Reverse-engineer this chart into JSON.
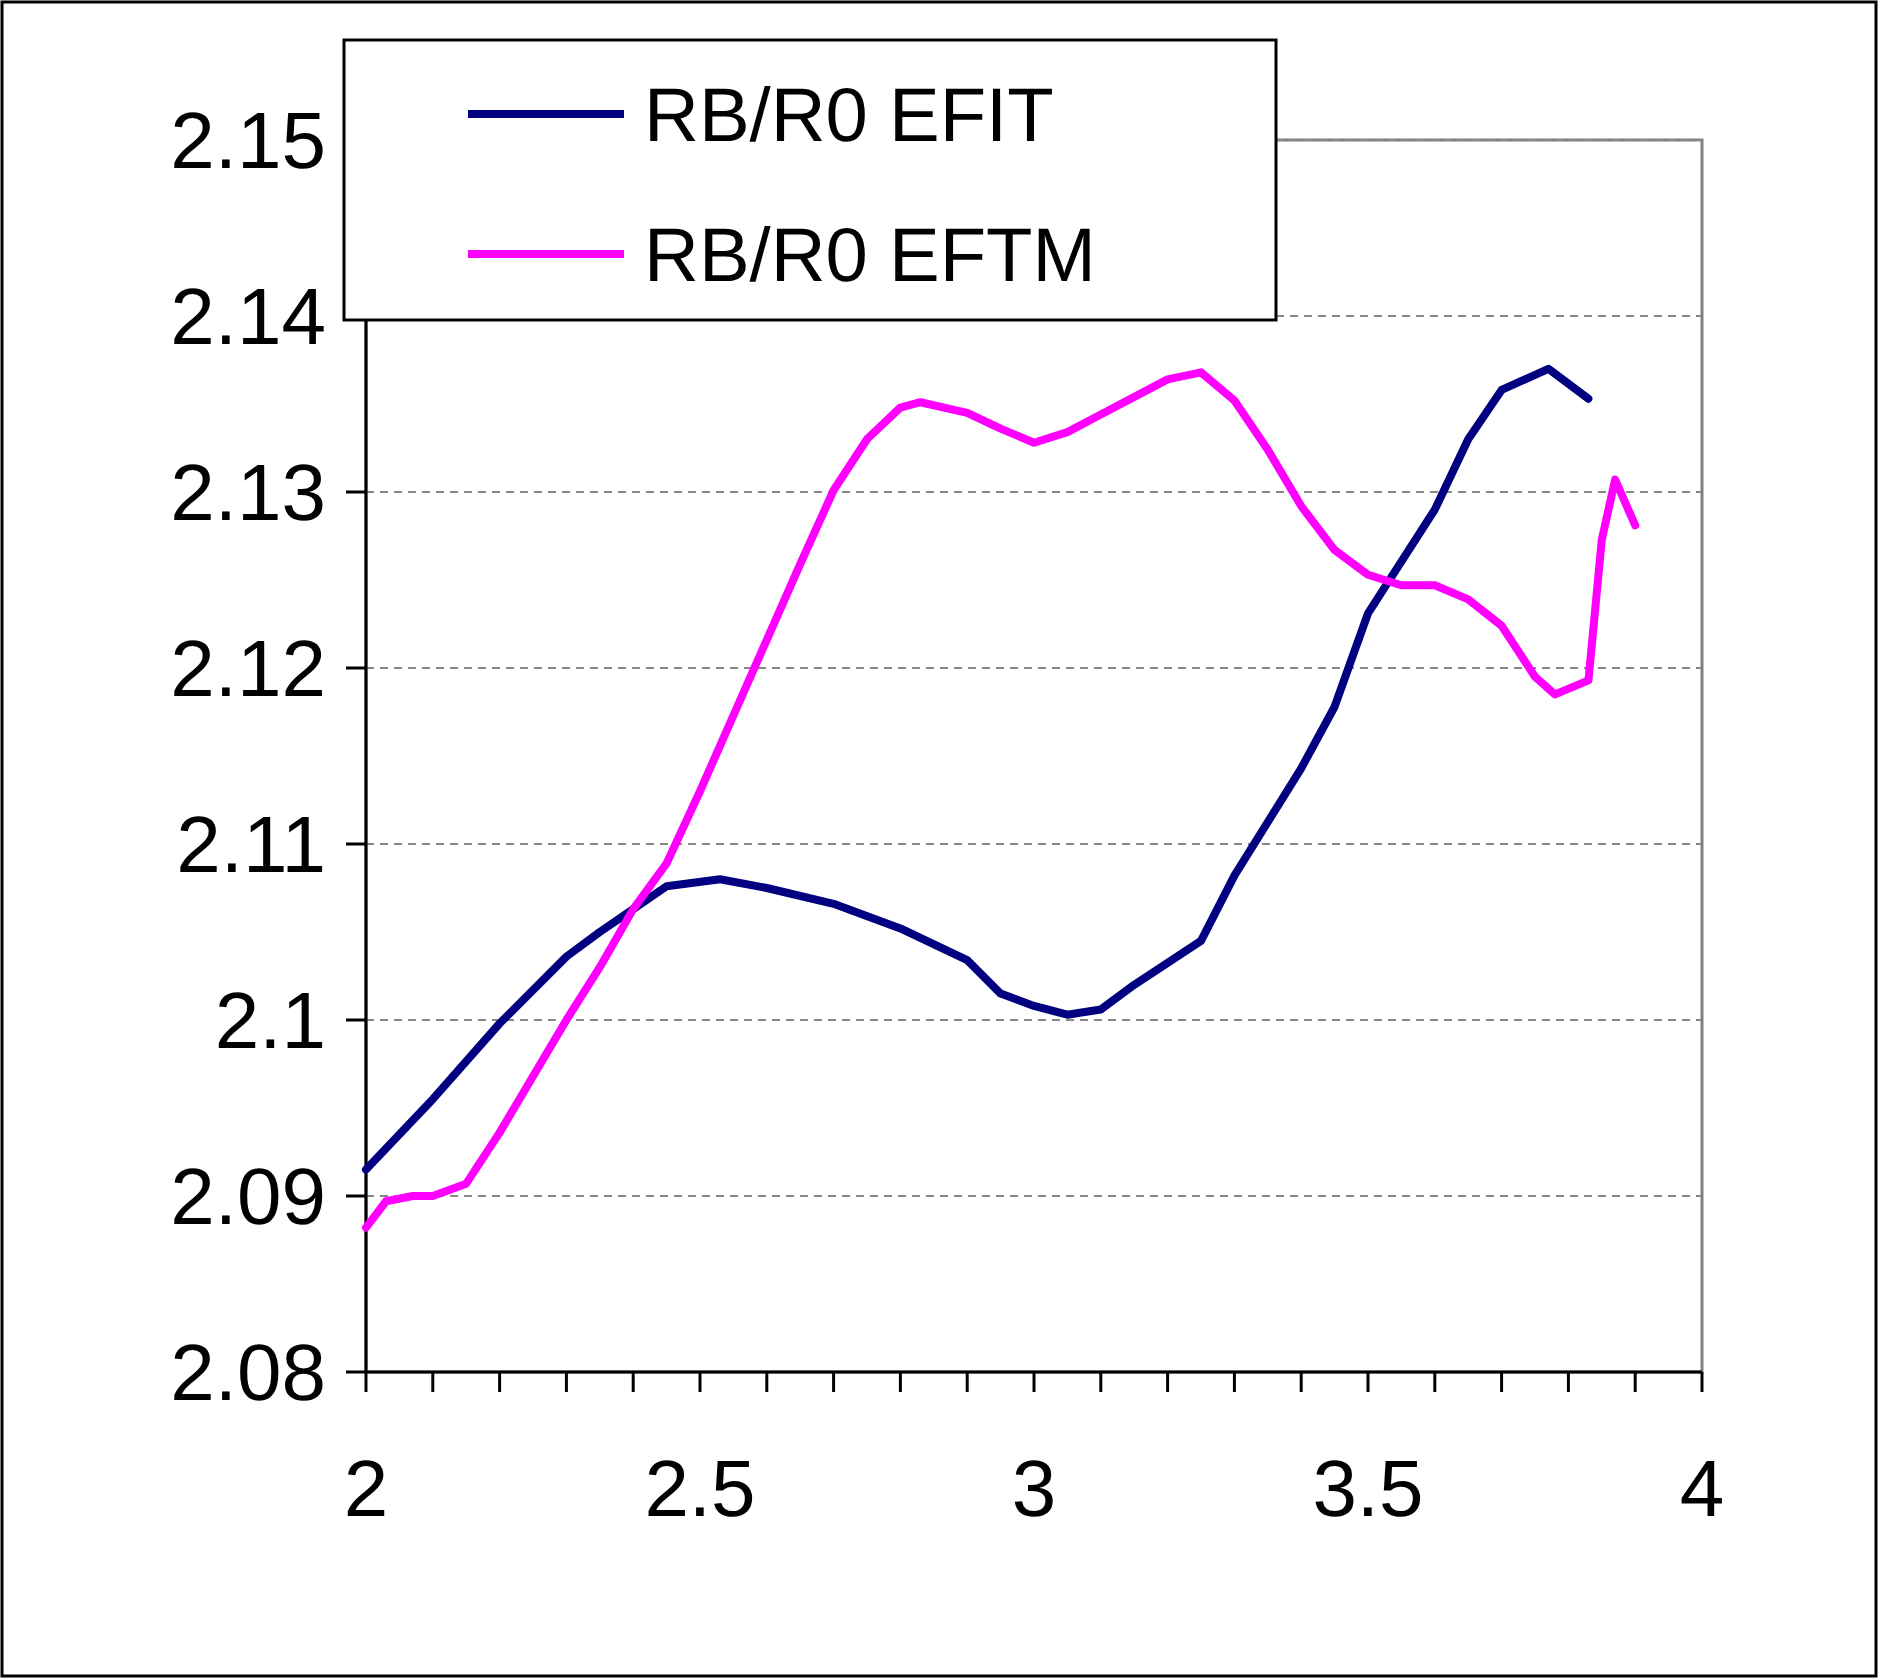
{
  "chart_data": {
    "type": "line",
    "xlim": [
      2,
      4
    ],
    "ylim": [
      2.08,
      2.15
    ],
    "xticks": [
      2,
      {
        "value": 2.1,
        "label": null
      },
      {
        "value": 2.2,
        "label": null
      },
      {
        "value": 2.3,
        "label": null
      },
      {
        "value": 2.4,
        "label": null
      },
      2.5,
      {
        "value": 2.6,
        "label": null
      },
      {
        "value": 2.7,
        "label": null
      },
      {
        "value": 2.8,
        "label": null
      },
      {
        "value": 2.9,
        "label": null
      },
      3,
      {
        "value": 3.1,
        "label": null
      },
      {
        "value": 3.2,
        "label": null
      },
      {
        "value": 3.3,
        "label": null
      },
      {
        "value": 3.4,
        "label": null
      },
      3.5,
      {
        "value": 3.6,
        "label": null
      },
      {
        "value": 3.7,
        "label": null
      },
      {
        "value": 3.8,
        "label": null
      },
      {
        "value": 3.9,
        "label": null
      },
      4
    ],
    "yticks": [
      2.08,
      2.09,
      2.1,
      2.11,
      2.12,
      2.13,
      2.14,
      2.15
    ],
    "grid": "y",
    "legend": "top left",
    "marker": "none",
    "line_style": "solid",
    "series": [
      {
        "name": "RB/R0 EFIT",
        "color": "#000080",
        "x": [
          2.0,
          2.1,
          2.2,
          2.3,
          2.35,
          2.4,
          2.45,
          2.53,
          2.6,
          2.7,
          2.8,
          2.9,
          2.95,
          3.0,
          3.05,
          3.1,
          3.15,
          3.25,
          3.3,
          3.4,
          3.45,
          3.5,
          3.6,
          3.65,
          3.7,
          3.77,
          3.83
        ],
        "values": [
          2.0915,
          2.0955,
          2.0998,
          2.1036,
          2.105,
          2.1063,
          2.1076,
          2.108,
          2.1075,
          2.1066,
          2.1052,
          2.1034,
          2.1015,
          2.1008,
          2.1003,
          2.1006,
          2.102,
          2.1045,
          2.1082,
          2.1143,
          2.1178,
          2.1231,
          2.129,
          2.133,
          2.1358,
          2.137,
          2.1353
        ]
      },
      {
        "name": "RB/R0 EFTM",
        "color": "#ff00ff",
        "x": [
          2.0,
          2.03,
          2.07,
          2.1,
          2.15,
          2.2,
          2.3,
          2.35,
          2.4,
          2.45,
          2.5,
          2.6,
          2.65,
          2.7,
          2.75,
          2.8,
          2.83,
          2.9,
          2.95,
          3.0,
          3.05,
          3.1,
          3.2,
          3.25,
          3.3,
          3.35,
          3.4,
          3.45,
          3.5,
          3.55,
          3.6,
          3.65,
          3.7,
          3.75,
          3.78,
          3.83,
          3.85,
          3.87,
          3.9
        ],
        "values": [
          2.0882,
          2.0897,
          2.09,
          2.09,
          2.0907,
          2.0936,
          2.1,
          2.103,
          2.1063,
          2.1089,
          2.113,
          2.1216,
          2.1259,
          2.1301,
          2.133,
          2.1348,
          2.1351,
          2.1345,
          2.1336,
          2.1328,
          2.1334,
          2.1344,
          2.1364,
          2.1368,
          2.1352,
          2.1324,
          2.1292,
          2.1267,
          2.1253,
          2.1247,
          2.1247,
          2.1239,
          2.1224,
          2.1195,
          2.1185,
          2.1193,
          2.1273,
          2.1307,
          2.1281
        ]
      }
    ]
  }
}
